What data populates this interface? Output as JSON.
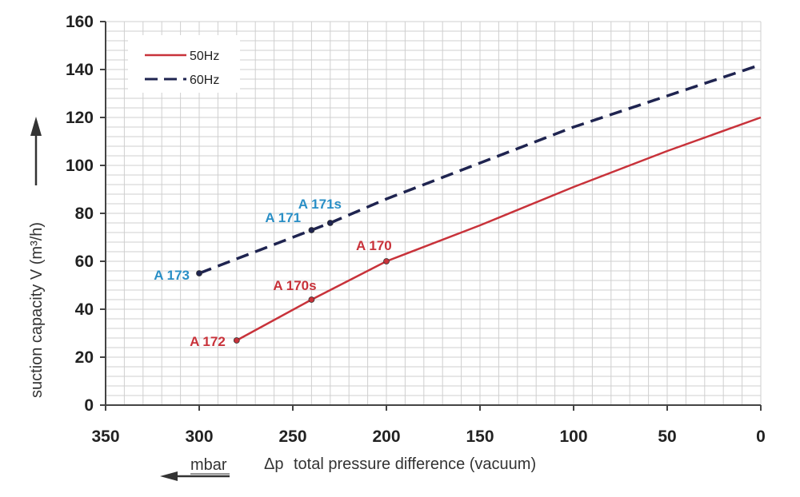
{
  "chart_data": {
    "type": "line",
    "title": "",
    "xlabel_unit": "mbar",
    "xlabel_symbol": "Δp",
    "xlabel": "total pressure difference (vacuum)",
    "ylabel": "suction capacity V (m³/h)",
    "xlim": [
      350,
      0
    ],
    "ylim": [
      0,
      160
    ],
    "x_ticks": [
      350,
      300,
      250,
      200,
      150,
      100,
      50,
      0
    ],
    "y_ticks": [
      0,
      20,
      40,
      60,
      80,
      100,
      120,
      140,
      160
    ],
    "grid": true,
    "legend_position": "top-left",
    "series": [
      {
        "name": "50Hz",
        "color": "#c8323a",
        "style": "solid",
        "x": [
          280,
          240,
          200,
          150,
          100,
          50,
          0
        ],
        "y": [
          27,
          44,
          60,
          75,
          91,
          106,
          120
        ],
        "points": [
          {
            "label": "A 172",
            "x": 280,
            "y": 27
          },
          {
            "label": "A 170s",
            "x": 240,
            "y": 44
          },
          {
            "label": "A 170",
            "x": 200,
            "y": 60
          }
        ]
      },
      {
        "name": "60Hz",
        "color": "#1f2450",
        "style": "dashed",
        "x": [
          300,
          240,
          230,
          200,
          150,
          100,
          50,
          0
        ],
        "y": [
          55,
          73,
          76,
          86,
          101,
          116,
          129,
          142
        ],
        "points": [
          {
            "label": "A 173",
            "x": 300,
            "y": 55
          },
          {
            "label": "A 171",
            "x": 240,
            "y": 73
          },
          {
            "label": "A 171s",
            "x": 230,
            "y": 76
          }
        ]
      }
    ],
    "point_label_color_50Hz": "#c8323a",
    "point_label_color_60Hz": "#2a8fc6"
  }
}
